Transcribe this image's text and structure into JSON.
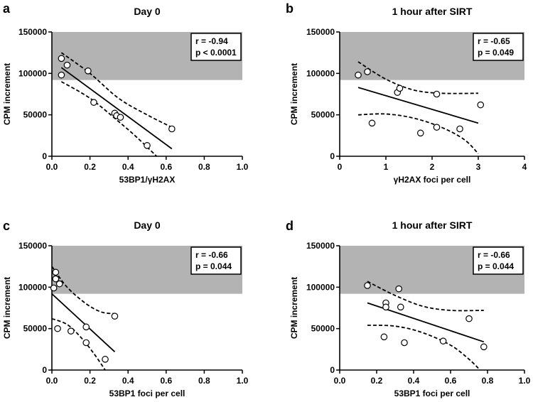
{
  "chart_data": [
    {
      "type": "scatter",
      "panel": "a",
      "title": "Day 0",
      "xlabel": "53BP1/γH2AX",
      "ylabel": "CPM increment",
      "xlim": [
        0,
        1.0
      ],
      "ylim": [
        0,
        150000
      ],
      "xticks": [
        "0.0",
        "0.2",
        "0.4",
        "0.6",
        "0.8",
        "1.0"
      ],
      "yticks": [
        "0",
        "50000",
        "100000",
        "150000"
      ],
      "shaded_band": [
        92000,
        150000
      ],
      "stat_r": "r = -0.94",
      "stat_p": "p < 0.0001",
      "points": [
        {
          "x": 0.05,
          "y": 118000
        },
        {
          "x": 0.08,
          "y": 110000
        },
        {
          "x": 0.05,
          "y": 98000
        },
        {
          "x": 0.19,
          "y": 103000
        },
        {
          "x": 0.22,
          "y": 65000
        },
        {
          "x": 0.33,
          "y": 52000
        },
        {
          "x": 0.34,
          "y": 49000
        },
        {
          "x": 0.36,
          "y": 47000
        },
        {
          "x": 0.5,
          "y": 13000
        },
        {
          "x": 0.63,
          "y": 33000
        }
      ],
      "fit": [
        [
          0.05,
          107000
        ],
        [
          0.63,
          9000
        ]
      ],
      "ci_upper": [
        [
          0.05,
          125000
        ],
        [
          0.2,
          100000
        ],
        [
          0.35,
          70000
        ],
        [
          0.5,
          50000
        ],
        [
          0.63,
          35000
        ]
      ],
      "ci_lower": [
        [
          0.05,
          90000
        ],
        [
          0.2,
          70000
        ],
        [
          0.35,
          42000
        ],
        [
          0.45,
          22000
        ],
        [
          0.55,
          0
        ]
      ]
    },
    {
      "type": "scatter",
      "panel": "b",
      "title": "1 hour after SIRT",
      "xlabel": "γH2AX foci per cell",
      "ylabel": "CPM increment",
      "xlim": [
        0,
        4
      ],
      "ylim": [
        0,
        150000
      ],
      "xticks": [
        "0",
        "1",
        "2",
        "3",
        "4"
      ],
      "yticks": [
        "0",
        "50000",
        "100000",
        "150000"
      ],
      "shaded_band": [
        92000,
        150000
      ],
      "stat_r": "r = -0.65",
      "stat_p": "p = 0.049",
      "points": [
        {
          "x": 0.4,
          "y": 98000
        },
        {
          "x": 0.6,
          "y": 102000
        },
        {
          "x": 1.25,
          "y": 77000
        },
        {
          "x": 1.3,
          "y": 82000
        },
        {
          "x": 2.1,
          "y": 75000
        },
        {
          "x": 0.7,
          "y": 40000
        },
        {
          "x": 1.75,
          "y": 28000
        },
        {
          "x": 2.1,
          "y": 35000
        },
        {
          "x": 2.6,
          "y": 33000
        },
        {
          "x": 3.05,
          "y": 62000
        }
      ],
      "fit": [
        [
          0.4,
          83000
        ],
        [
          3.0,
          40000
        ]
      ],
      "ci_upper": [
        [
          0.4,
          114000
        ],
        [
          1.0,
          93000
        ],
        [
          1.6,
          80000
        ],
        [
          2.2,
          76000
        ],
        [
          3.0,
          76000
        ]
      ],
      "ci_lower": [
        [
          0.4,
          50000
        ],
        [
          1.0,
          51000
        ],
        [
          1.6,
          46000
        ],
        [
          2.2,
          35000
        ],
        [
          2.7,
          20000
        ],
        [
          3.0,
          3000
        ]
      ]
    },
    {
      "type": "scatter",
      "panel": "c",
      "title": "Day 0",
      "xlabel": "53BP1 foci per cell",
      "ylabel": "CPM increment",
      "xlim": [
        0,
        1.0
      ],
      "ylim": [
        0,
        150000
      ],
      "xticks": [
        "0.0",
        "0.2",
        "0.4",
        "0.6",
        "0.8",
        "1.0"
      ],
      "yticks": [
        "0",
        "50000",
        "100000",
        "150000"
      ],
      "shaded_band": [
        92000,
        150000
      ],
      "stat_r": "r = -0.66",
      "stat_p": "p = 0.044",
      "points": [
        {
          "x": 0.02,
          "y": 118000
        },
        {
          "x": 0.02,
          "y": 110000
        },
        {
          "x": 0.04,
          "y": 104000
        },
        {
          "x": 0.01,
          "y": 99000
        },
        {
          "x": 0.33,
          "y": 65000
        },
        {
          "x": 0.03,
          "y": 50000
        },
        {
          "x": 0.1,
          "y": 47000
        },
        {
          "x": 0.18,
          "y": 52000
        },
        {
          "x": 0.18,
          "y": 33000
        },
        {
          "x": 0.28,
          "y": 13000
        }
      ],
      "fit": [
        [
          0.0,
          92000
        ],
        [
          0.33,
          22000
        ]
      ],
      "ci_upper": [
        [
          0.0,
          125000
        ],
        [
          0.08,
          100000
        ],
        [
          0.18,
          80000
        ],
        [
          0.26,
          70000
        ],
        [
          0.33,
          68000
        ]
      ],
      "ci_lower": [
        [
          0.0,
          62000
        ],
        [
          0.08,
          55000
        ],
        [
          0.15,
          40000
        ],
        [
          0.22,
          20000
        ],
        [
          0.28,
          0
        ]
      ]
    },
    {
      "type": "scatter",
      "panel": "d",
      "title": "1 hour after SIRT",
      "xlabel": "53BP1 foci per cell",
      "ylabel": "CPM increment",
      "xlim": [
        0,
        1.0
      ],
      "ylim": [
        0,
        150000
      ],
      "xticks": [
        "0.0",
        "0.2",
        "0.4",
        "0.6",
        "0.8",
        "1.0"
      ],
      "yticks": [
        "0",
        "50000",
        "100000",
        "150000"
      ],
      "shaded_band": [
        92000,
        150000
      ],
      "stat_r": "r = -0.66",
      "stat_p": "p = 0.044",
      "points": [
        {
          "x": 0.15,
          "y": 102000
        },
        {
          "x": 0.32,
          "y": 98000
        },
        {
          "x": 0.25,
          "y": 81000
        },
        {
          "x": 0.25,
          "y": 76000
        },
        {
          "x": 0.33,
          "y": 76000
        },
        {
          "x": 0.7,
          "y": 62000
        },
        {
          "x": 0.24,
          "y": 40000
        },
        {
          "x": 0.35,
          "y": 33000
        },
        {
          "x": 0.56,
          "y": 35000
        },
        {
          "x": 0.78,
          "y": 28000
        }
      ],
      "fit": [
        [
          0.15,
          81000
        ],
        [
          0.78,
          34000
        ]
      ],
      "ci_upper": [
        [
          0.15,
          107000
        ],
        [
          0.3,
          90000
        ],
        [
          0.45,
          77000
        ],
        [
          0.6,
          72000
        ],
        [
          0.78,
          72000
        ]
      ],
      "ci_lower": [
        [
          0.15,
          54000
        ],
        [
          0.3,
          53000
        ],
        [
          0.45,
          45000
        ],
        [
          0.6,
          30000
        ],
        [
          0.7,
          13000
        ],
        [
          0.76,
          0
        ]
      ]
    }
  ]
}
